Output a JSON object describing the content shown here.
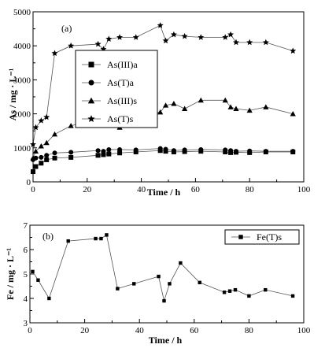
{
  "chart_data": [
    {
      "type": "line",
      "panel_label": "(a)",
      "xlabel": "Time / h",
      "ylabel": "As / mg · L⁻¹",
      "xlim": [
        0,
        100
      ],
      "ylim": [
        0,
        5000
      ],
      "x_ticks": [
        0,
        20,
        40,
        60,
        80,
        100
      ],
      "y_ticks": [
        0,
        1000,
        2000,
        3000,
        4000,
        5000
      ],
      "legend_position": "center-left",
      "series": [
        {
          "name": "As(III)a",
          "marker": "square",
          "x": [
            0,
            1,
            3,
            5,
            8,
            14,
            24,
            26,
            28,
            32,
            38,
            47,
            49,
            52,
            56,
            62,
            71,
            73,
            75,
            80,
            86,
            96
          ],
          "y": [
            300,
            450,
            550,
            650,
            700,
            720,
            780,
            800,
            820,
            850,
            880,
            920,
            900,
            880,
            890,
            900,
            880,
            860,
            870,
            860,
            880,
            880
          ]
        },
        {
          "name": "As(T)a",
          "marker": "circle",
          "x": [
            0,
            1,
            3,
            5,
            8,
            14,
            24,
            26,
            28,
            32,
            38,
            47,
            49,
            52,
            56,
            62,
            71,
            73,
            75,
            80,
            86,
            96
          ],
          "y": [
            650,
            700,
            720,
            780,
            850,
            870,
            920,
            900,
            950,
            950,
            940,
            980,
            960,
            920,
            940,
            950,
            940,
            920,
            900,
            910,
            900,
            900
          ]
        },
        {
          "name": "As(III)s",
          "marker": "triangle",
          "x": [
            0,
            1,
            3,
            5,
            8,
            14,
            24,
            26,
            28,
            32,
            38,
            47,
            49,
            52,
            56,
            62,
            71,
            73,
            75,
            80,
            86,
            96
          ],
          "y": [
            700,
            900,
            1050,
            1150,
            1400,
            1650,
            1850,
            1800,
            2000,
            1600,
            2000,
            2050,
            2250,
            2300,
            2150,
            2400,
            2400,
            2200,
            2150,
            2100,
            2200,
            2000
          ]
        },
        {
          "name": "As(T)s",
          "marker": "star",
          "x": [
            0,
            1,
            3,
            5,
            8,
            14,
            24,
            26,
            28,
            32,
            38,
            47,
            49,
            52,
            56,
            62,
            71,
            73,
            75,
            80,
            86,
            96
          ],
          "y": [
            1100,
            1600,
            1800,
            1900,
            3780,
            4000,
            4050,
            3900,
            4200,
            4250,
            4250,
            4600,
            4150,
            4330,
            4280,
            4250,
            4250,
            4330,
            4100,
            4100,
            4100,
            3850
          ]
        }
      ]
    },
    {
      "type": "line",
      "panel_label": "(b)",
      "xlabel": "Time / h",
      "ylabel": "Fe / mg · L⁻¹",
      "xlim": [
        0,
        100
      ],
      "ylim": [
        3,
        7
      ],
      "x_ticks": [
        0,
        20,
        40,
        60,
        80,
        100
      ],
      "y_ticks": [
        3,
        4,
        5,
        6,
        7
      ],
      "legend_position": "top-right",
      "series": [
        {
          "name": "Fe(T)s",
          "marker": "square",
          "x": [
            1,
            3,
            7,
            14,
            24,
            26,
            28,
            32,
            38,
            47,
            49,
            51,
            55,
            62,
            71,
            73,
            75,
            80,
            86,
            96
          ],
          "y": [
            5.1,
            4.75,
            4.0,
            6.35,
            6.45,
            6.45,
            6.6,
            4.4,
            4.6,
            4.9,
            3.9,
            4.6,
            5.45,
            4.65,
            4.25,
            4.3,
            4.35,
            4.1,
            4.35,
            4.1
          ]
        }
      ]
    }
  ]
}
